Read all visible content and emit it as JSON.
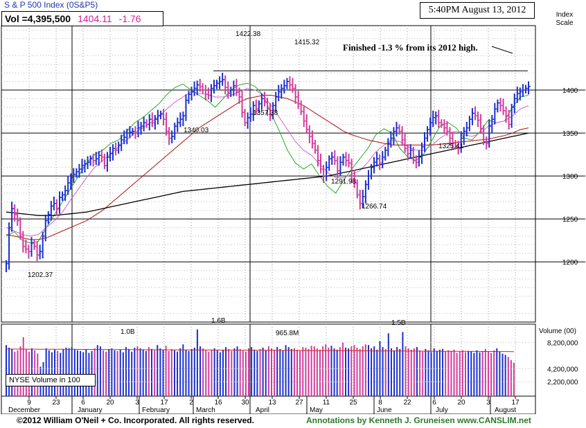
{
  "header": {
    "title": "S & P 500 Index  (0S&P5)",
    "volume": "Vol =4,395,500",
    "price": "1404.11",
    "change": "-1.76",
    "datetime": "5:40PM August 13, 2012",
    "scale_label_1": "Index",
    "scale_label_2": "Scale"
  },
  "annotation": "Finished -1.3 % from its 2012 high.",
  "volume_panel": {
    "title": "Volume (00)",
    "legend": "NYSE Volume in 100",
    "ticks": [
      {
        "value": 8200000,
        "label": "8,200,000"
      },
      {
        "value": 4200000,
        "label": "4,200,000"
      },
      {
        "value": 2200000,
        "label": "2,200,000"
      }
    ],
    "annotations": [
      "1.0B",
      "1.6B",
      "965.8M",
      "1.5B"
    ]
  },
  "footer": {
    "copyright": "©2012 William O'Neil + Co. Incorporated. All rights reserved.",
    "credit": "Annotations by Kenneth J. Gruneisen www.CANSLIM.net"
  },
  "colors": {
    "up_bar": "#1a2ecc",
    "down_bar": "#d03a9a",
    "ma_10": "#22aa22",
    "ma_21": "#cc66cc",
    "ma_50": "#aa1111",
    "ma_200": "#000000",
    "grid": "#999999",
    "volume_avg": "#cc2222"
  },
  "chart_data": {
    "type": "line",
    "title": "S & P 500 Index  (0S&P5)",
    "ylim": [
      1130,
      1475
    ],
    "y_ticks": [
      1200,
      1250,
      1300,
      1350,
      1400
    ],
    "x_tick_labels": [
      "9",
      "23",
      "6",
      "20",
      "3",
      "17",
      "2",
      "16",
      "30",
      "13",
      "27",
      "11",
      "25",
      "8",
      "22",
      "6",
      "20",
      "3",
      "17"
    ],
    "months": [
      "December",
      "January",
      "February",
      "March",
      "April",
      "May",
      "June",
      "July",
      "August"
    ],
    "price_labels": [
      {
        "label": "1202.37",
        "value": 1202.37
      },
      {
        "label": "1340.03",
        "value": 1340.03
      },
      {
        "label": "1422.38",
        "value": 1422.38
      },
      {
        "label": "1357.38",
        "value": 1357.38
      },
      {
        "label": "1415.32",
        "value": 1415.32
      },
      {
        "label": "1291.98",
        "value": 1291.98
      },
      {
        "label": "1266.74",
        "value": 1266.74
      },
      {
        "label": "1325.41",
        "value": 1325.41
      }
    ],
    "high_line_value": 1422.38,
    "series": [
      {
        "values": [
          1198,
          1240,
          1262,
          1255,
          1248,
          1230,
          1218,
          1215,
          1212,
          1222,
          1218,
          1208,
          1212,
          1230,
          1248,
          1255,
          1265,
          1268,
          1262,
          1275,
          1278,
          1283,
          1292,
          1298,
          1302,
          1305,
          1308,
          1312,
          1314,
          1316,
          1320,
          1318,
          1320,
          1324,
          1322,
          1312,
          1322,
          1326,
          1332,
          1330,
          1336,
          1342,
          1345,
          1350,
          1351,
          1352,
          1350,
          1356,
          1358,
          1362,
          1360,
          1366,
          1362,
          1366,
          1370,
          1372,
          1366,
          1352,
          1344,
          1346,
          1358,
          1362,
          1366,
          1370,
          1388,
          1395,
          1398,
          1402,
          1406,
          1404,
          1400,
          1395,
          1394,
          1402,
          1405,
          1408,
          1410,
          1412,
          1403,
          1396,
          1400,
          1405,
          1398,
          1392,
          1374,
          1362,
          1368,
          1372,
          1382,
          1378,
          1384,
          1390,
          1386,
          1378,
          1370,
          1382,
          1392,
          1398,
          1402,
          1405,
          1410,
          1406,
          1402,
          1392,
          1384,
          1375,
          1364,
          1354,
          1346,
          1338,
          1330,
          1318,
          1308,
          1300,
          1310,
          1320,
          1322,
          1318,
          1306,
          1316,
          1322,
          1318,
          1315,
          1300,
          1292,
          1278,
          1268,
          1276,
          1290,
          1300,
          1310,
          1316,
          1320,
          1315,
          1322,
          1330,
          1338,
          1344,
          1352,
          1356,
          1352,
          1342,
          1332,
          1326,
          1330,
          1318,
          1316,
          1322,
          1334,
          1344,
          1354,
          1362,
          1368,
          1370,
          1362,
          1360,
          1356,
          1352,
          1344,
          1338,
          1335,
          1332,
          1344,
          1352,
          1356,
          1366,
          1373,
          1370,
          1365,
          1355,
          1340,
          1338,
          1358,
          1366,
          1378,
          1385,
          1382,
          1376,
          1370,
          1360,
          1380,
          1390,
          1396,
          1398,
          1400,
          1402,
          1404.11
        ]
      },
      {
        "name": "10-day",
        "values": [
          1230,
          1235,
          1225,
          1222,
          1224,
          1240,
          1255,
          1270,
          1285,
          1300,
          1315,
          1325,
          1330,
          1338,
          1342,
          1352,
          1362,
          1368,
          1376,
          1384,
          1395,
          1403,
          1407,
          1400,
          1394,
          1388,
          1380,
          1390,
          1400,
          1406,
          1408,
          1404,
          1394,
          1372,
          1352,
          1330,
          1315,
          1308,
          1314,
          1300,
          1288,
          1280,
          1295,
          1308,
          1320,
          1332,
          1348,
          1355,
          1350,
          1332,
          1322,
          1318,
          1326,
          1342,
          1358,
          1362,
          1356,
          1344,
          1342,
          1352,
          1365,
          1362,
          1364,
          1380,
          1392,
          1394
        ]
      },
      {
        "name": "21-day",
        "values": [
          1240,
          1236,
          1232,
          1230,
          1232,
          1240,
          1248,
          1258,
          1272,
          1285,
          1298,
          1310,
          1318,
          1326,
          1334,
          1342,
          1350,
          1356,
          1362,
          1370,
          1378,
          1386,
          1392,
          1398,
          1396,
          1395,
          1392,
          1392,
          1394,
          1398,
          1402,
          1400,
          1394,
          1382,
          1368,
          1354,
          1340,
          1330,
          1324,
          1314,
          1304,
          1298,
          1298,
          1302,
          1306,
          1316,
          1328,
          1336,
          1342,
          1340,
          1334,
          1330,
          1330,
          1336,
          1344,
          1350,
          1352,
          1348,
          1346,
          1350,
          1358,
          1362,
          1364,
          1370,
          1378,
          1382
        ]
      },
      {
        "name": "50-day",
        "values": [
          1232,
          1230,
          1228,
          1226,
          1226,
          1228,
          1232,
          1236,
          1240,
          1244,
          1248,
          1254,
          1260,
          1268,
          1276,
          1284,
          1292,
          1300,
          1308,
          1316,
          1324,
          1332,
          1340,
          1348,
          1356,
          1362,
          1368,
          1374,
          1380,
          1386,
          1390,
          1392,
          1394,
          1394,
          1392,
          1390,
          1386,
          1382,
          1376,
          1370,
          1364,
          1358,
          1352,
          1348,
          1345,
          1342,
          1340,
          1338,
          1336,
          1336,
          1336,
          1336,
          1336,
          1336,
          1337,
          1338,
          1339,
          1340,
          1341,
          1342,
          1343,
          1345,
          1347,
          1350,
          1354,
          1356
        ]
      },
      {
        "name": "200-day",
        "values": [
          1258,
          1257,
          1256,
          1255,
          1254,
          1254,
          1254,
          1255,
          1256,
          1257,
          1258,
          1260,
          1262,
          1264,
          1266,
          1268,
          1270,
          1272,
          1274,
          1276,
          1278,
          1280,
          1282,
          1283,
          1284,
          1285,
          1286,
          1287,
          1288,
          1289,
          1290,
          1291,
          1292,
          1293,
          1294,
          1295,
          1296,
          1297,
          1298,
          1299,
          1300,
          1302,
          1304,
          1306,
          1308,
          1310,
          1312,
          1314,
          1316,
          1318,
          1320,
          1322,
          1324,
          1326,
          1328,
          1330,
          1332,
          1334,
          1336,
          1338,
          1340,
          1342,
          1344,
          1346,
          1348,
          1350
        ]
      }
    ],
    "volume": {
      "ylim": [
        0,
        11000000
      ],
      "values": [
        7800000,
        7400000,
        7200000,
        6800000,
        7000000,
        7600000,
        9000000,
        7200000,
        6800000,
        7300000,
        7000000,
        6500000,
        4500000,
        5200000,
        7300000,
        7000000,
        6700000,
        7100000,
        6900000,
        6600000,
        7200000,
        7400000,
        7300000,
        7500000,
        7200000,
        7000000,
        6900000,
        6700000,
        7100000,
        6600000,
        6900000,
        7300000,
        7800000,
        7600000,
        7000000,
        6800000,
        7200000,
        7300000,
        7000000,
        6900000,
        7100000,
        6700000,
        7500000,
        7200000,
        6800000,
        7400000,
        7600000,
        7300000,
        7100000,
        6900000,
        7500000,
        7200000,
        7000000,
        7800000,
        7300000,
        7100000,
        7700000,
        6900000,
        7200000,
        7000000,
        6800000,
        7300000,
        7900000,
        7100000,
        6900000,
        7200000,
        7400000,
        10200000,
        7600000,
        7300000,
        7000000,
        6800000,
        7100000,
        7300000,
        7000000,
        6700000,
        7100000,
        7500000,
        7200000,
        6900000,
        7300000,
        7600000,
        7200000,
        7000000,
        6800000,
        7300000,
        7500000,
        7100000,
        6900000,
        7200000,
        7400000,
        7000000,
        7600000,
        7300000,
        7100000,
        7500000,
        7200000,
        7000000,
        7800000,
        7500000,
        7200000,
        7300000,
        7100000,
        6900000,
        7500000,
        7400000,
        7200000,
        7700000,
        7600000,
        7300000,
        7100000,
        7600000,
        7900000,
        7400000,
        7700000,
        7300000,
        7100000,
        7500000,
        8200000,
        7400000,
        7300000,
        7600000,
        7800000,
        7400000,
        7200000,
        7600000,
        7900000,
        7800000,
        7300000,
        7600000,
        7100000,
        8400000,
        7500000,
        7200000,
        9600000,
        7300000,
        7000000,
        7500000,
        7200000,
        9800000,
        7600000,
        7300000,
        7100000,
        7300000,
        7500000,
        7000000,
        6800000,
        7200000,
        7000000,
        6700000,
        7300000,
        6900000,
        7100000,
        7200000,
        6800000,
        7000000,
        6900000,
        7100000,
        6600000,
        6800000,
        7000000,
        6700000,
        6900000,
        6800000,
        6600000,
        7000000,
        6700000,
        6900000,
        7200000,
        6800000,
        6600000,
        7000000,
        7300000,
        6800000,
        6500000,
        6300000,
        6000000,
        5500000,
        5100000
      ]
    }
  }
}
